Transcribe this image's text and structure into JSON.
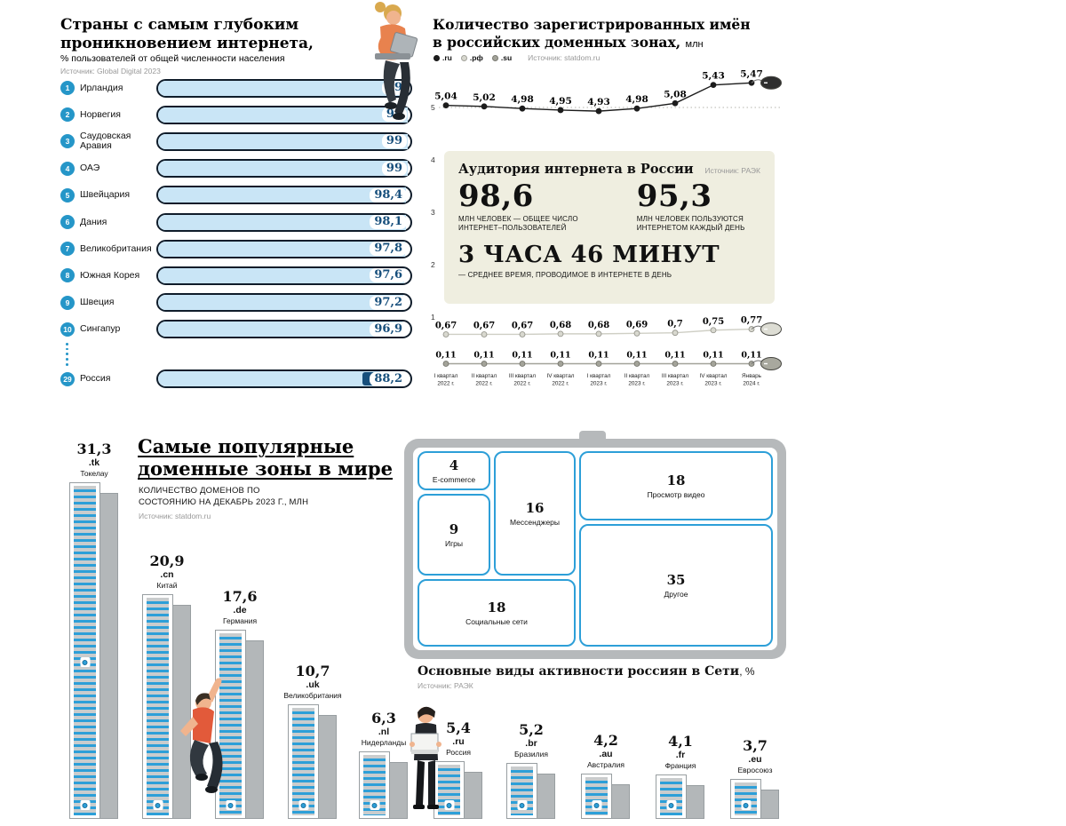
{
  "chart_data": [
    {
      "id": "penetration",
      "type": "bar",
      "title_lines": [
        "Страны с самым глубоким",
        "проникновением интернета,"
      ],
      "subtitle": "% пользователей от общей численности населения",
      "source": "Источник: Global Digital 2023",
      "xlim": [
        0,
        100
      ],
      "unit": "%",
      "rows": [
        {
          "rank": "1",
          "country": "Ирландия",
          "value": 99,
          "label": "99"
        },
        {
          "rank": "2",
          "country": "Норвегия",
          "value": 99,
          "label": "99"
        },
        {
          "rank": "3",
          "country": "Саудовская Аравия",
          "value": 99,
          "label": "99"
        },
        {
          "rank": "4",
          "country": "ОАЭ",
          "value": 99,
          "label": "99"
        },
        {
          "rank": "5",
          "country": "Швейцария",
          "value": 98.4,
          "label": "98,4"
        },
        {
          "rank": "6",
          "country": "Дания",
          "value": 98.1,
          "label": "98,1"
        },
        {
          "rank": "7",
          "country": "Великобритания",
          "value": 97.8,
          "label": "97,8"
        },
        {
          "rank": "8",
          "country": "Южная Корея",
          "value": 97.6,
          "label": "97,6"
        },
        {
          "rank": "9",
          "country": "Швеция",
          "value": 97.2,
          "label": "97,2"
        },
        {
          "rank": "10",
          "country": "Сингапур",
          "value": 96.9,
          "label": "96,9"
        },
        {
          "rank": "29",
          "country": "Россия",
          "value": 88.2,
          "label": "88,2",
          "gap_before": true,
          "dark_cap": true
        }
      ]
    },
    {
      "id": "ru_domains",
      "type": "line",
      "title_lines": [
        "Количество зарегистрированных имён",
        "в российских доменных зонах,"
      ],
      "title_unit": "млн",
      "source": "Источник: statdom.ru",
      "ylim": [
        0,
        5.6
      ],
      "y_ticks": [
        "5",
        "4",
        "3",
        "2",
        "1"
      ],
      "grid": "dotted line at y=5",
      "legend_position": "top",
      "x_labels": [
        [
          "I квартал",
          "2022 г."
        ],
        [
          "II квартал",
          "2022 г."
        ],
        [
          "III квартал",
          "2022 г."
        ],
        [
          "IV квартал",
          "2022 г."
        ],
        [
          "I квартал",
          "2023 г."
        ],
        [
          "II квартал",
          "2023 г."
        ],
        [
          "III квартал",
          "2023 г."
        ],
        [
          "IV квартал",
          "2023 г."
        ],
        [
          "Январь",
          "2024 г."
        ]
      ],
      "legend": [
        {
          "label": ".ru",
          "color": "#1c1c1c"
        },
        {
          "label": ".рф",
          "color": "#d8d8cf"
        },
        {
          "label": ".su",
          "color": "#a3a399"
        }
      ],
      "series": [
        {
          "name": ".ru",
          "values": [
            5.04,
            5.02,
            4.98,
            4.95,
            4.93,
            4.98,
            5.08,
            5.43,
            5.47
          ],
          "labels": [
            "5,04",
            "5,02",
            "4,98",
            "4,95",
            "4,93",
            "4,98",
            "5,08",
            "5,43",
            "5,47"
          ],
          "line_color": "#1c1c1c",
          "dot_color": "#1c1c1c",
          "dot_stroke": "#1c1c1c",
          "mouse_color": "#2e2e2e",
          "label_size": 10.5
        },
        {
          "name": ".рф",
          "values": [
            0.67,
            0.67,
            0.67,
            0.68,
            0.68,
            0.69,
            0.7,
            0.75,
            0.77
          ],
          "labels": [
            "0,67",
            "0,67",
            "0,67",
            "0,68",
            "0,68",
            "0,69",
            "0,7",
            "0,75",
            "0,77"
          ],
          "line_color": "#cfcfc5",
          "dot_color": "#d8d8cf",
          "dot_stroke": "#8f8f86",
          "mouse_color": "#ddddd4",
          "label_size": 10
        },
        {
          "name": ".su",
          "values": [
            0.11,
            0.11,
            0.11,
            0.11,
            0.11,
            0.11,
            0.11,
            0.11,
            0.11
          ],
          "labels": [
            "0,11",
            "0,11",
            "0,11",
            "0,11",
            "0,11",
            "0,11",
            "0,11",
            "0,11",
            "0,11"
          ],
          "line_color": "#a3a399",
          "dot_color": "#a3a399",
          "dot_stroke": "#6e6e66",
          "mouse_color": "#a8a89e",
          "label_size": 9.5
        }
      ]
    },
    {
      "id": "zones",
      "type": "bar",
      "title_lines": [
        "Самые популярные",
        "доменные зоны в мире"
      ],
      "subtitle": "КОЛИЧЕСТВО ДОМЕНОВ ПО СОСТОЯНИЮ НА ДЕКАБРЬ 2023 Г., МЛН",
      "source": "Источник: statdom.ru",
      "bars": [
        {
          "value": 31.3,
          "label": "31,3",
          "tld": ".tk",
          "name": "Токелау"
        },
        {
          "value": 20.9,
          "label": "20,9",
          "tld": ".cn",
          "name": "Китай"
        },
        {
          "value": 17.6,
          "label": "17,6",
          "tld": ".de",
          "name": "Германия"
        },
        {
          "value": 10.7,
          "label": "10,7",
          "tld": ".uk",
          "name": "Великобритания"
        },
        {
          "value": 6.3,
          "label": "6,3",
          "tld": ".nl",
          "name": "Нидерланды"
        },
        {
          "value": 5.4,
          "label": "5,4",
          "tld": ".ru",
          "name": "Россия"
        },
        {
          "value": 5.2,
          "label": "5,2",
          "tld": ".br",
          "name": "Бразилия"
        },
        {
          "value": 4.2,
          "label": "4,2",
          "tld": ".au",
          "name": "Австралия"
        },
        {
          "value": 4.1,
          "label": "4,1",
          "tld": ".fr",
          "name": "Франция"
        },
        {
          "value": 3.7,
          "label": "3,7",
          "tld": ".eu",
          "name": "Евросоюз"
        }
      ]
    },
    {
      "id": "activity",
      "type": "treemap",
      "title": "Основные виды активности россиян в Сети",
      "title_unit": ", %",
      "source": "Источник: РАЭК",
      "items": [
        {
          "key": "ecommerce",
          "value": 4,
          "value_label": "4",
          "label": "E-commerce"
        },
        {
          "key": "games",
          "value": 9,
          "value_label": "9",
          "label": "Игры"
        },
        {
          "key": "messengers",
          "value": 16,
          "value_label": "16",
          "label": "Мессенджеры"
        },
        {
          "key": "social",
          "value": 18,
          "value_label": "18",
          "label": "Социальные сети"
        },
        {
          "key": "video",
          "value": 18,
          "value_label": "18",
          "label": "Просмотр видео"
        },
        {
          "key": "other",
          "value": 35,
          "value_label": "35",
          "label": "Другое"
        }
      ]
    }
  ],
  "audience": {
    "title": "Аудитория интернета в России",
    "source": "Источник: РАЭК",
    "stat1_value": "98,6",
    "stat1_caption": "МЛН ЧЕЛОВЕК — ОБЩЕЕ ЧИСЛО ИНТЕРНЕТ–ПОЛЬЗОВАТЕЛЕЙ",
    "stat2_value": "95,3",
    "stat2_caption": "МЛН ЧЕЛОВЕК ПОЛЬЗУЮТСЯ ИНТЕРНЕТОМ КАЖДЫЙ ДЕНЬ",
    "time_value": "3 ЧАСА 46 МИНУТ",
    "time_caption": "— СРЕДНЕЕ ВРЕМЯ, ПРОВОДИМОЕ В ИНТЕРНЕТЕ В ДЕНЬ"
  },
  "colors": {
    "accent_blue": "#2d9fd8",
    "rank_blue": "#2596c8",
    "bar_fill": "#c9e5f6",
    "navy": "#174f7c",
    "beige": "#efeee0",
    "frame_grey": "#b6b9bb"
  }
}
